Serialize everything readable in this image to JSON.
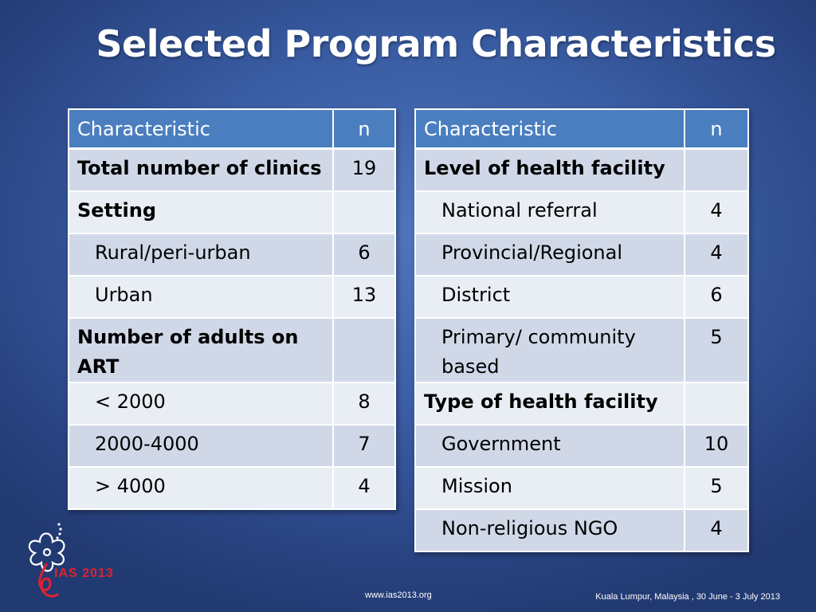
{
  "slide": {
    "title": "Selected Program Characteristics"
  },
  "left_table": {
    "headers": [
      "Characteristic",
      "n"
    ],
    "rows": [
      {
        "label": "Total number of clinics",
        "n": "19"
      },
      {
        "label": "Setting",
        "n": ""
      },
      {
        "label": "Rural/peri-urban",
        "n": "6"
      },
      {
        "label": "Urban",
        "n": "13"
      },
      {
        "label": "Number of adults on ART",
        "n": ""
      },
      {
        "label": "< 2000",
        "n": "8"
      },
      {
        "label": "2000-4000",
        "n": "7"
      },
      {
        "label": "> 4000",
        "n": "4"
      }
    ]
  },
  "right_table": {
    "headers": [
      "Characteristic",
      "n"
    ],
    "rows": [
      {
        "label": "Level of health facility",
        "n": ""
      },
      {
        "label": "National referral",
        "n": "4"
      },
      {
        "label": "Provincial/Regional",
        "n": "4"
      },
      {
        "label": "District",
        "n": "6"
      },
      {
        "label": "Primary/ community based",
        "n": "5"
      },
      {
        "label": "Type of health facility",
        "n": ""
      },
      {
        "label": "Government",
        "n": "10"
      },
      {
        "label": "Mission",
        "n": "5"
      },
      {
        "label": "Non-religious NGO",
        "n": "4"
      }
    ]
  },
  "logo": {
    "text": "IAS 2013",
    "color": "#e0222e"
  },
  "footer": {
    "url": "www.ias2013.org",
    "location": "Kuala Lumpur, Malaysia , 30 June - 3 July 2013"
  },
  "colors": {
    "header_bg": "#4a7ebf",
    "row_odd": "#d0d8e8",
    "row_even": "#e9edf4",
    "background": "#3a5da4"
  }
}
